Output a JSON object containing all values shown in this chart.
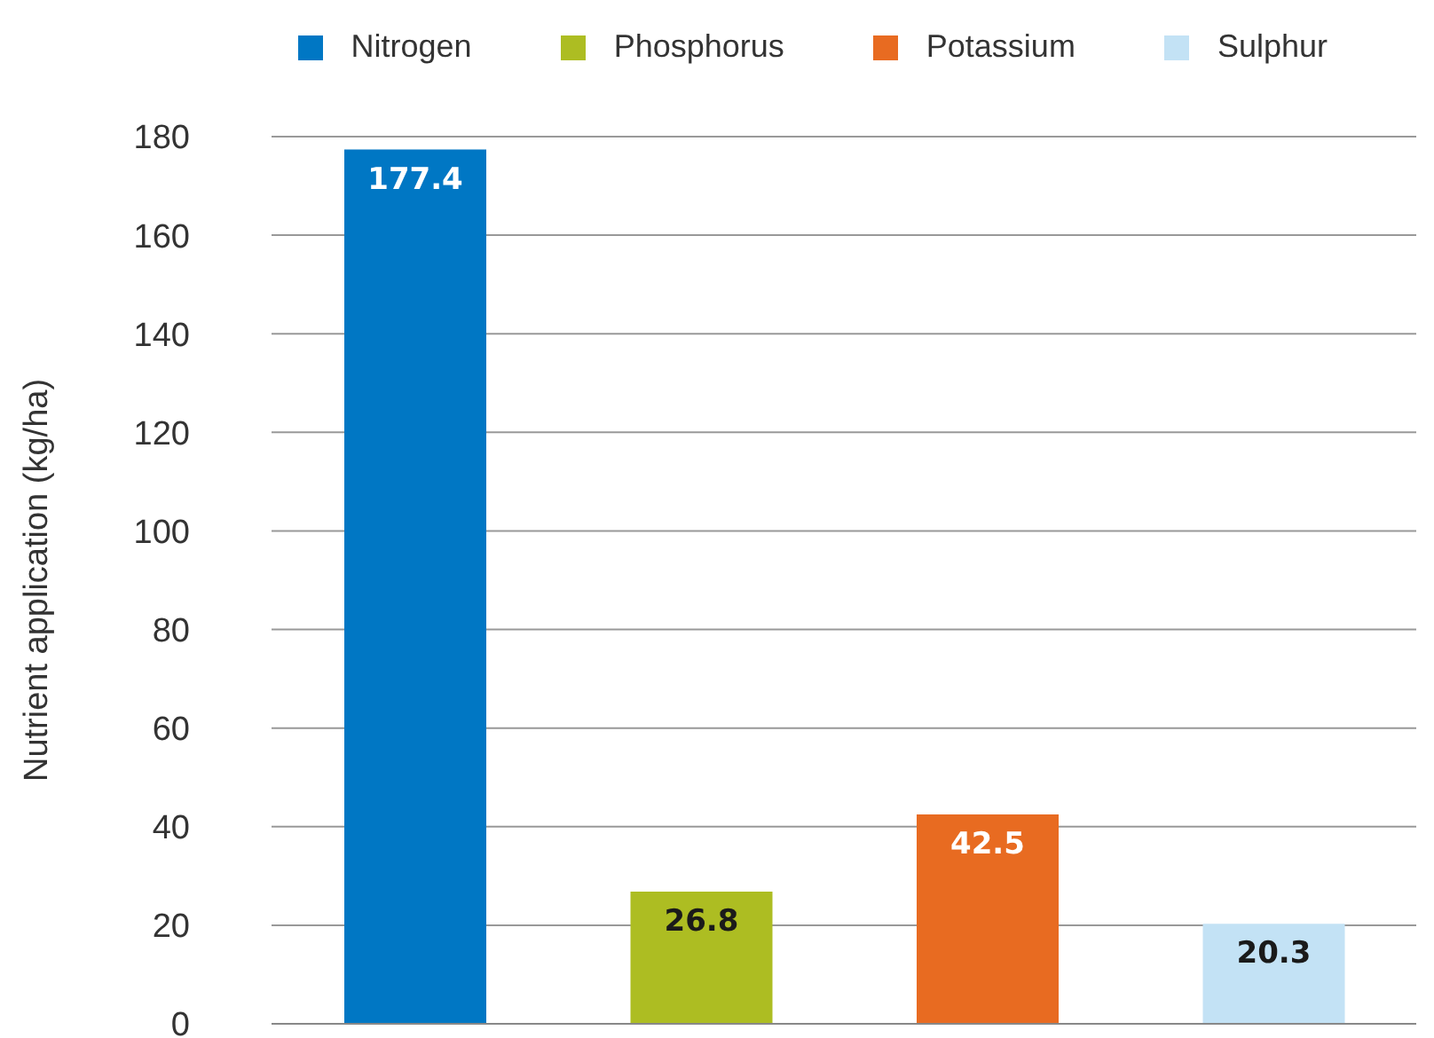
{
  "chart_data": {
    "type": "bar",
    "ylabel": "Nutrient application (kg/ha)",
    "categories": [
      null,
      null,
      null,
      null
    ],
    "series": [
      {
        "name": "Nitrogen",
        "color": "#0077c4",
        "values": [
          177.4,
          null,
          null,
          null
        ]
      },
      {
        "name": "Phosphorus",
        "color": "#adbd22",
        "values": [
          null,
          26.8,
          null,
          null
        ]
      },
      {
        "name": "Potassium",
        "color": "#e86b21",
        "values": [
          null,
          null,
          42.5,
          null
        ]
      },
      {
        "name": "Sulphur",
        "color": "#c3e2f5",
        "values": [
          null,
          null,
          null,
          20.3
        ]
      }
    ],
    "ylim": [
      0,
      180
    ],
    "yticks": [
      0,
      20,
      40,
      60,
      80,
      100,
      120,
      140,
      160,
      180
    ],
    "grid": "y",
    "legend": "top right",
    "data_labels": true
  }
}
